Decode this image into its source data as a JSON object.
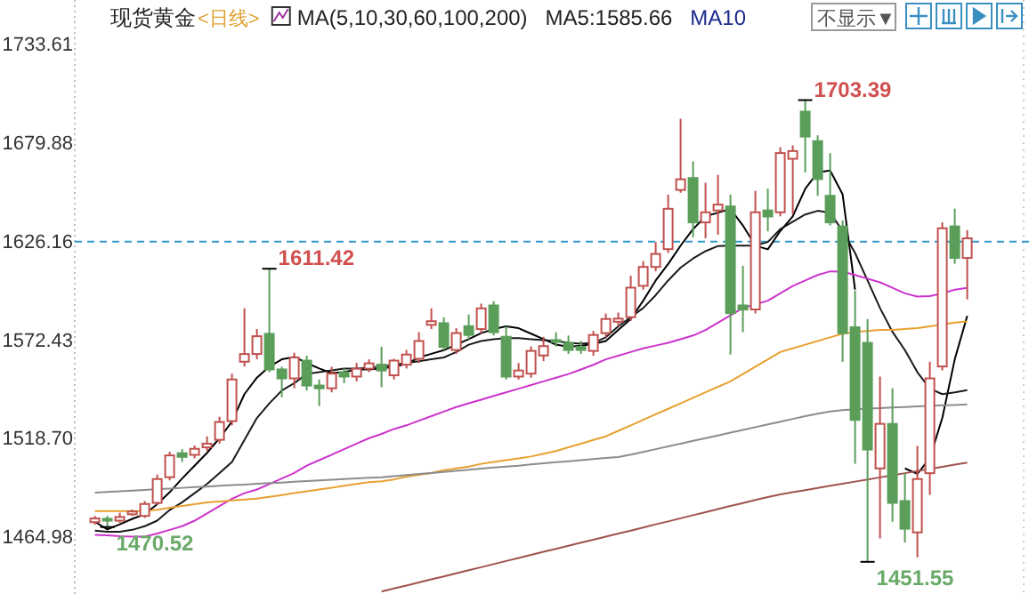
{
  "chart_data": {
    "type": "candlestick",
    "title": "现货黄金",
    "subtitle": "<日线>",
    "annotations": [
      "MA(5,10,30,60,100,200)",
      "MA5:1585.66",
      "MA10",
      "不显示▼",
      "1611.42",
      "1703.39",
      "1470.52",
      "1451.55"
    ],
    "categories": [
      null,
      null,
      null,
      null,
      null,
      null,
      null,
      null,
      null,
      null,
      null,
      null,
      null,
      null,
      null,
      null,
      null,
      null,
      null,
      null,
      null,
      null,
      null,
      null,
      null,
      null,
      null,
      null,
      null,
      null,
      null,
      null,
      null,
      null,
      null,
      null,
      null,
      null,
      null,
      null,
      null,
      null,
      null,
      null,
      null,
      null,
      null,
      null,
      null,
      null,
      null,
      null,
      null,
      null,
      null,
      null,
      null,
      null,
      null,
      null,
      null,
      null,
      null,
      null,
      null,
      null,
      null,
      null,
      null,
      null,
      null
    ],
    "ohlc": [
      [
        1473.2,
        1476.6,
        1471.8,
        1475.2
      ],
      [
        1475.0,
        1476.6,
        1470.52,
        1474.0
      ],
      [
        1474.0,
        1478.3,
        1472.8,
        1476.0
      ],
      [
        1477.5,
        1480,
        1476.5,
        1479
      ],
      [
        1476.6,
        1484.7,
        1475.5,
        1483.1
      ],
      [
        1483.7,
        1499.2,
        1482.5,
        1496.7
      ],
      [
        1497.7,
        1511.6,
        1496,
        1509.6
      ],
      [
        1510.8,
        1513,
        1506,
        1508.8
      ],
      [
        1509.9,
        1515,
        1508,
        1513.2
      ],
      [
        1514,
        1520,
        1512,
        1516
      ],
      [
        1518.1,
        1530.7,
        1516,
        1527.8
      ],
      [
        1528.3,
        1554.2,
        1526,
        1551.0
      ],
      [
        1560.7,
        1589.8,
        1558,
        1564.9
      ],
      [
        1564.9,
        1578.5,
        1562,
        1574.6
      ],
      [
        1575.9,
        1611.42,
        1555,
        1556.5
      ],
      [
        1556.5,
        1558,
        1541.3,
        1551.6
      ],
      [
        1551.6,
        1565.6,
        1546.2,
        1563.0
      ],
      [
        1561.3,
        1564,
        1545,
        1547.7
      ],
      [
        1547.7,
        1551,
        1536.5,
        1546.2
      ],
      [
        1546.2,
        1558,
        1544,
        1554.2
      ],
      [
        1554.9,
        1557,
        1549,
        1552.6
      ],
      [
        1552.6,
        1560,
        1550,
        1556.9
      ],
      [
        1556.9,
        1562,
        1555,
        1559.8
      ],
      [
        1559.1,
        1568.8,
        1546.8,
        1555.9
      ],
      [
        1553.3,
        1562.3,
        1551,
        1561.3
      ],
      [
        1559.1,
        1567.1,
        1557,
        1564.6
      ],
      [
        1562.3,
        1576.8,
        1560,
        1572.0
      ],
      [
        1580.8,
        1589.8,
        1578.5,
        1582.8
      ],
      [
        1581.7,
        1585,
        1567,
        1568.8
      ],
      [
        1567.1,
        1579,
        1565,
        1576.3
      ],
      [
        1580.1,
        1586.5,
        1573,
        1575.3
      ],
      [
        1578.5,
        1592.4,
        1576,
        1589.8
      ],
      [
        1591.4,
        1593.7,
        1575,
        1576.8
      ],
      [
        1574.3,
        1580,
        1551,
        1552.6
      ],
      [
        1552.6,
        1560,
        1551,
        1555.9
      ],
      [
        1554.2,
        1569,
        1552,
        1566.6
      ],
      [
        1564.1,
        1574.3,
        1561,
        1569.2
      ],
      [
        1572.5,
        1576.8,
        1569,
        1571.5
      ],
      [
        1571.0,
        1575,
        1565,
        1567.1
      ],
      [
        1568.8,
        1572,
        1565,
        1567.1
      ],
      [
        1566.6,
        1577.5,
        1564,
        1575.3
      ],
      [
        1576.3,
        1587,
        1574,
        1584.0
      ],
      [
        1582.5,
        1587.5,
        1580,
        1584.2
      ],
      [
        1585.0,
        1607.6,
        1583,
        1601.1
      ],
      [
        1602.1,
        1615.6,
        1600,
        1612.4
      ],
      [
        1612.4,
        1626,
        1610,
        1619.5
      ],
      [
        1622.1,
        1651.9,
        1620,
        1644.1
      ],
      [
        1654.4,
        1693.2,
        1652.9,
        1660.2
      ],
      [
        1660.9,
        1670,
        1628.6,
        1636.7
      ],
      [
        1636.7,
        1658.3,
        1628,
        1642.2
      ],
      [
        1643.2,
        1662.6,
        1630,
        1646.4
      ],
      [
        1645.4,
        1651.9,
        1564.6,
        1587.2
      ],
      [
        1591.4,
        1613,
        1576.8,
        1589.2
      ],
      [
        1589.2,
        1653.9,
        1587,
        1642.2
      ],
      [
        1643.2,
        1655.1,
        1631.8,
        1639.9
      ],
      [
        1642.2,
        1677.7,
        1640,
        1674.5
      ],
      [
        1671.4,
        1678.7,
        1641.2,
        1675.6
      ],
      [
        1697.1,
        1703.39,
        1664,
        1683.5
      ],
      [
        1681,
        1684.2,
        1651.2,
        1660.3
      ],
      [
        1651.2,
        1674.5,
        1635,
        1636.7
      ],
      [
        1634.5,
        1637.7,
        1560.7,
        1576.3
      ],
      [
        1579.5,
        1599.5,
        1505,
        1529.0
      ],
      [
        1571.0,
        1584,
        1451.55,
        1512.8
      ],
      [
        1502.5,
        1552.6,
        1464.3,
        1526.8
      ],
      [
        1526.8,
        1546.2,
        1473.4,
        1483.7
      ],
      [
        1484.7,
        1499.9,
        1462.1,
        1469.6
      ],
      [
        1467.6,
        1514.8,
        1454,
        1496.7
      ],
      [
        1499.9,
        1560.7,
        1488,
        1551.6
      ],
      [
        1558.1,
        1636.7,
        1556,
        1633.5
      ],
      [
        1634.5,
        1644.2,
        1614.1,
        1617.3
      ],
      [
        1617.3,
        1632.5,
        1594.7,
        1628
      ]
    ],
    "colors": [
      "#c0504d",
      "#5a9e5a",
      "#c0504d",
      "#c0504d",
      "#c0504d",
      "#c0504d",
      "#c0504d",
      "#5a9e5a",
      "#c0504d",
      "#c0504d",
      "#c0504d",
      "#c0504d",
      "#c0504d",
      "#c0504d",
      "#5a9e5a",
      "#5a9e5a",
      "#c0504d",
      "#5a9e5a",
      "#5a9e5a",
      "#c0504d",
      "#5a9e5a",
      "#c0504d",
      "#c0504d",
      "#5a9e5a",
      "#c0504d",
      "#c0504d",
      "#c0504d",
      "#c0504d",
      "#5a9e5a",
      "#c0504d",
      "#5a9e5a",
      "#c0504d",
      "#5a9e5a",
      "#5a9e5a",
      "#c0504d",
      "#c0504d",
      "#c0504d",
      "#5a9e5a",
      "#5a9e5a",
      "#5a9e5a",
      "#c0504d",
      "#c0504d",
      "#c0504d",
      "#c0504d",
      "#c0504d",
      "#c0504d",
      "#c0504d",
      "#c0504d",
      "#5a9e5a",
      "#c0504d",
      "#c0504d",
      "#5a9e5a",
      "#5a9e5a",
      "#c0504d",
      "#5a9e5a",
      "#c0504d",
      "#c0504d",
      "#5a9e5a",
      "#5a9e5a",
      "#5a9e5a",
      "#5a9e5a",
      "#5a9e5a",
      "#5a9e5a",
      "#c0504d",
      "#5a9e5a",
      "#5a9e5a",
      "#c0504d",
      "#c0504d",
      "#c0504d",
      "#5a9e5a",
      "#c0504d"
    ],
    "series": [
      {
        "type": "line",
        "color": "#000000",
        "values": [
          1473.4,
          1469.2,
          1472,
          1475,
          1477.5,
          1483,
          1489.5,
          1497,
          1504,
          1511,
          1519,
          1528,
          1543,
          1552,
          1558,
          1562,
          1563.3,
          1560,
          1557,
          1554.5,
          1555,
          1556.5,
          1556.5,
          1557,
          1558,
          1559.5,
          1563,
          1565,
          1567,
          1570,
          1573,
          1576.3,
          1578.5,
          1580,
          1579,
          1576,
          1573,
          1570,
          1568.8,
          1569.5,
          1570.4,
          1572,
          1578,
          1584,
          1594,
          1605,
          1614,
          1624,
          1633,
          1640,
          1642,
          1644,
          1635,
          1624,
          1622,
          1632,
          1640,
          1655,
          1664,
          1665,
          1652,
          1600,
          null,
          null,
          null,
          1502.5,
          1499.5,
          1508,
          1530,
          1562,
          1585.66
        ]
      },
      {
        "type": "line",
        "color": "#1a1a1a",
        "values": [
          1468.6,
          1468,
          1468,
          1469,
          1471,
          1474,
          1479.8,
          1484,
          1489,
          1494,
          1500,
          1506,
          1518,
          1530,
          1538,
          1545,
          1549,
          1554,
          1555,
          1556,
          1557,
          1557,
          1557.5,
          1558,
          1559,
          1560,
          1561,
          1562,
          1563,
          1566,
          1570,
          1572,
          1573,
          1573.6,
          1573.6,
          1573,
          1572.5,
          1572,
          1571,
          1570.5,
          1571,
          1574,
          1580,
          1585,
          1590,
          1597,
          1605,
          1612,
          1617,
          1621,
          1623.8,
          1624,
          1624,
          1624,
          1626,
          1633,
          1637,
          1641,
          1643,
          1642,
          1632,
          1620,
          1605,
          1590,
          1577,
          1567,
          1555,
          1546,
          1543,
          1544,
          1545.2
        ]
      },
      {
        "type": "line",
        "color": "#cc33cc",
        "values": [
          1466.3,
          1466,
          1465.5,
          1465.3,
          1465.3,
          1467,
          1469,
          1471,
          1474,
          1478,
          1482,
          1486,
          1489,
          1491,
          1494,
          1497,
          1500,
          1504,
          1507,
          1510,
          1513,
          1516,
          1519,
          1521.3,
          1524,
          1526,
          1528.5,
          1531,
          1533.5,
          1536,
          1538,
          1540,
          1542,
          1544,
          1546,
          1548,
          1550,
          1552,
          1554,
          1556.5,
          1559,
          1562,
          1564,
          1566,
          1568,
          1569.5,
          1571,
          1573,
          1575,
          1578,
          1582,
          1586,
          1590,
          1592,
          1594,
          1598,
          1602,
          1605,
          1608,
          1610,
          1609.8,
          1608,
          1606,
          1604,
          1601,
          1598,
          1596.2,
          1596.5,
          1598,
          1600,
          1601
        ]
      },
      {
        "type": "line",
        "color": "#e8a030",
        "values": [
          1479.2,
          1479.2,
          1479.2,
          1479.2,
          1479.2,
          1480,
          1481,
          1482,
          1483,
          1484,
          1484.5,
          1485,
          1485.5,
          1486,
          1487,
          1488,
          1489,
          1490,
          1491,
          1492,
          1493,
          1494,
          1495,
          1495.5,
          1496.5,
          1498,
          1499,
          1500,
          1501.5,
          1502.5,
          1503.5,
          1505,
          1506,
          1507,
          1508,
          1509,
          1510.5,
          1512,
          1514,
          1516,
          1518,
          1520,
          1523,
          1526,
          1529,
          1532,
          1535,
          1538,
          1541,
          1544,
          1547,
          1550,
          1554,
          1558,
          1562,
          1566,
          1568,
          1570,
          1572,
          1574,
          1576,
          1577,
          1577.5,
          1578,
          1578,
          1578.5,
          1579,
          1580,
          1581,
          1582,
          1582.7
        ]
      },
      {
        "type": "line",
        "color": "#8c8c8c",
        "values": [
          1489.3,
          1489.7,
          1490,
          1490.4,
          1490.8,
          1491.2,
          1491.5,
          1491.9,
          1492.3,
          1492.6,
          1493,
          1493.4,
          1493.7,
          1494.1,
          1494.5,
          1494.8,
          1495.2,
          1495.6,
          1496,
          1496.3,
          1496.7,
          1497,
          1497.4,
          1497.7,
          1498.3,
          1498.9,
          1499.5,
          1500,
          1500.6,
          1501.2,
          1501.8,
          1502.4,
          1503,
          1503.5,
          1504,
          1504.7,
          1505.3,
          1505.9,
          1506.4,
          1507,
          1507.6,
          1508.2,
          1508.7,
          1510,
          1511.5,
          1513,
          1514.5,
          1516,
          1517.5,
          1519,
          1520.5,
          1522,
          1523.5,
          1525,
          1526.5,
          1528,
          1529.5,
          1531,
          1532.3,
          1533.5,
          1534.3,
          1534.8,
          1535.1,
          1535.4,
          1535.7,
          1536,
          1536.3,
          1536.6,
          1536.9,
          1537.1,
          1537.4
        ]
      },
      {
        "type": "line",
        "color": "#a0524d",
        "values": [
          null,
          null,
          null,
          null,
          null,
          null,
          null,
          null,
          null,
          null,
          null,
          null,
          null,
          null,
          null,
          null,
          null,
          null,
          null,
          null,
          null,
          null,
          null,
          1435.3,
          1437,
          1438.6,
          1440.3,
          1442,
          1443.6,
          1445.3,
          1447,
          1448.6,
          1450.3,
          1452,
          1453.6,
          1455.3,
          1457,
          1458.6,
          1460.3,
          1462,
          1463.6,
          1465.3,
          1467,
          1468.6,
          1470.3,
          1472,
          1473.6,
          1475.3,
          1477,
          1478.6,
          1480.3,
          1482,
          1483.6,
          1485.3,
          1486.9,
          1488.3,
          1489.5,
          1490.6,
          1491.8,
          1493,
          1494.1,
          1495.3,
          1496.5,
          1497.6,
          1498.8,
          1499.9,
          1501.1,
          1502.3,
          1503.4,
          1504.6,
          1505.7
        ]
      }
    ],
    "ylim": [
      1434,
      1758
    ],
    "yticks": [
      1464.98,
      {
        "value": 1518.7,
        "label": "1518.70"
      },
      1572.43,
      1626.16,
      1679.88,
      1733.61
    ],
    "ref_lines": [
      {
        "axis": "y",
        "value": 1626.16,
        "color": "#3399cc",
        "line_style": "dashed"
      }
    ],
    "tick_labels": "y"
  }
}
